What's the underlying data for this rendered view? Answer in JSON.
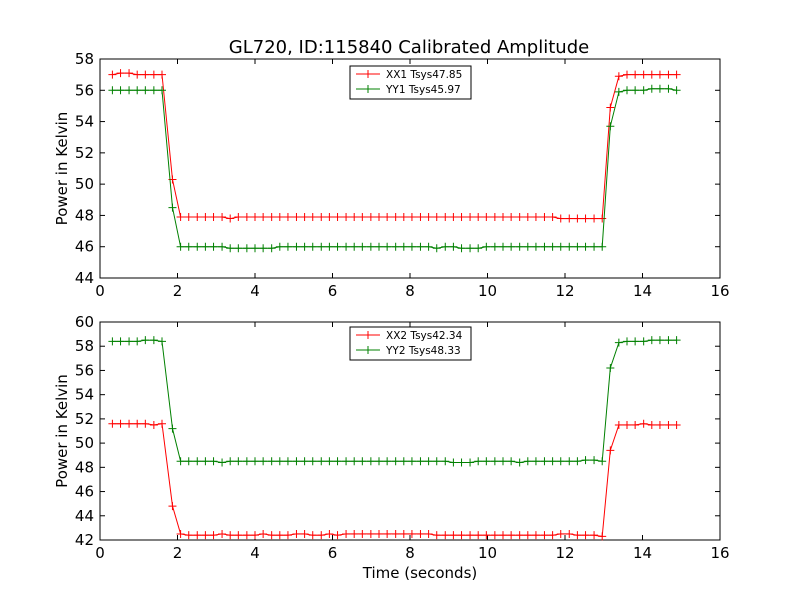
{
  "title": "GL720, ID:115840 Calibrated Amplitude",
  "chart_data": [
    {
      "type": "line",
      "xlabel": "",
      "ylabel": "Power in Kelvin",
      "xlim": [
        0,
        16
      ],
      "ylim": [
        44,
        58
      ],
      "xticks": [
        "0",
        "2",
        "4",
        "6",
        "8",
        "10",
        "12",
        "14",
        "16"
      ],
      "yticks": [
        "44",
        "46",
        "48",
        "50",
        "52",
        "54",
        "56",
        "58"
      ],
      "legend": "top-center",
      "grid": false,
      "x": [
        0.32,
        0.53,
        0.75,
        0.96,
        1.17,
        1.39,
        1.6,
        1.87,
        2.08,
        2.29,
        2.51,
        2.72,
        2.93,
        3.15,
        3.36,
        3.57,
        3.79,
        4.0,
        4.21,
        4.43,
        4.64,
        4.85,
        5.07,
        5.28,
        5.49,
        5.71,
        5.92,
        6.13,
        6.35,
        6.56,
        6.77,
        6.99,
        7.2,
        7.41,
        7.63,
        7.84,
        8.05,
        8.27,
        8.48,
        8.69,
        8.91,
        9.12,
        9.33,
        9.55,
        9.76,
        9.97,
        10.19,
        10.4,
        10.61,
        10.83,
        11.04,
        11.25,
        11.47,
        11.68,
        11.89,
        12.11,
        12.32,
        12.53,
        12.75,
        12.96,
        13.17,
        13.39,
        13.6,
        13.81,
        14.03,
        14.24,
        14.45,
        14.67,
        14.88
      ],
      "series": [
        {
          "name": "XX1 Tsys47.85",
          "color": "#ff0000",
          "values": [
            57.0,
            57.1,
            57.1,
            57.0,
            57.0,
            57.0,
            57.0,
            50.3,
            47.9,
            47.9,
            47.9,
            47.9,
            47.9,
            47.9,
            47.8,
            47.9,
            47.9,
            47.9,
            47.9,
            47.9,
            47.9,
            47.9,
            47.9,
            47.9,
            47.9,
            47.9,
            47.9,
            47.9,
            47.9,
            47.9,
            47.9,
            47.9,
            47.9,
            47.9,
            47.9,
            47.9,
            47.9,
            47.9,
            47.9,
            47.9,
            47.9,
            47.9,
            47.9,
            47.9,
            47.9,
            47.9,
            47.9,
            47.9,
            47.9,
            47.9,
            47.9,
            47.9,
            47.9,
            47.9,
            47.8,
            47.8,
            47.8,
            47.8,
            47.8,
            47.8,
            54.9,
            56.9,
            57.0,
            57.0,
            57.0,
            57.0,
            57.0,
            57.0,
            57.0
          ]
        },
        {
          "name": "YY1 Tsys45.97",
          "color": "#008000",
          "values": [
            56.0,
            56.0,
            56.0,
            56.0,
            56.0,
            56.0,
            56.0,
            48.5,
            46.0,
            46.0,
            46.0,
            46.0,
            46.0,
            46.0,
            45.9,
            45.9,
            45.9,
            45.9,
            45.9,
            45.9,
            46.0,
            46.0,
            46.0,
            46.0,
            46.0,
            46.0,
            46.0,
            46.0,
            46.0,
            46.0,
            46.0,
            46.0,
            46.0,
            46.0,
            46.0,
            46.0,
            46.0,
            46.0,
            46.0,
            45.9,
            46.0,
            46.0,
            45.9,
            45.9,
            45.9,
            46.0,
            46.0,
            46.0,
            46.0,
            46.0,
            46.0,
            46.0,
            46.0,
            46.0,
            46.0,
            46.0,
            46.0,
            46.0,
            46.0,
            46.0,
            53.7,
            55.9,
            56.0,
            56.0,
            56.0,
            56.1,
            56.1,
            56.1,
            56.0
          ]
        }
      ]
    },
    {
      "type": "line",
      "xlabel": "Time (seconds)",
      "ylabel": "Power in Kelvin",
      "xlim": [
        0,
        16
      ],
      "ylim": [
        42,
        60
      ],
      "xticks": [
        "0",
        "2",
        "4",
        "6",
        "8",
        "10",
        "12",
        "14",
        "16"
      ],
      "yticks": [
        "42",
        "44",
        "46",
        "48",
        "50",
        "52",
        "54",
        "56",
        "58",
        "60"
      ],
      "legend": "top-center",
      "grid": false,
      "x": [
        0.32,
        0.53,
        0.75,
        0.96,
        1.17,
        1.39,
        1.6,
        1.87,
        2.08,
        2.29,
        2.51,
        2.72,
        2.93,
        3.15,
        3.36,
        3.57,
        3.79,
        4.0,
        4.21,
        4.43,
        4.64,
        4.85,
        5.07,
        5.28,
        5.49,
        5.71,
        5.92,
        6.13,
        6.35,
        6.56,
        6.77,
        6.99,
        7.2,
        7.41,
        7.63,
        7.84,
        8.05,
        8.27,
        8.48,
        8.69,
        8.91,
        9.12,
        9.33,
        9.55,
        9.76,
        9.97,
        10.19,
        10.4,
        10.61,
        10.83,
        11.04,
        11.25,
        11.47,
        11.68,
        11.89,
        12.11,
        12.32,
        12.53,
        12.75,
        12.96,
        13.17,
        13.39,
        13.6,
        13.81,
        14.03,
        14.24,
        14.45,
        14.67,
        14.88
      ],
      "series": [
        {
          "name": "XX2 Tsys42.34",
          "color": "#ff0000",
          "values": [
            51.6,
            51.6,
            51.6,
            51.6,
            51.6,
            51.5,
            51.6,
            44.8,
            42.5,
            42.4,
            42.4,
            42.4,
            42.4,
            42.5,
            42.4,
            42.4,
            42.4,
            42.4,
            42.5,
            42.4,
            42.4,
            42.4,
            42.5,
            42.5,
            42.4,
            42.4,
            42.5,
            42.4,
            42.5,
            42.5,
            42.5,
            42.5,
            42.5,
            42.5,
            42.5,
            42.5,
            42.5,
            42.5,
            42.5,
            42.4,
            42.4,
            42.4,
            42.4,
            42.4,
            42.4,
            42.4,
            42.4,
            42.4,
            42.4,
            42.4,
            42.4,
            42.4,
            42.4,
            42.4,
            42.5,
            42.5,
            42.4,
            42.4,
            42.4,
            42.3,
            49.4,
            51.5,
            51.5,
            51.5,
            51.6,
            51.5,
            51.5,
            51.5,
            51.5
          ]
        },
        {
          "name": "YY2 Tsys48.33",
          "color": "#008000",
          "values": [
            58.4,
            58.4,
            58.4,
            58.4,
            58.5,
            58.5,
            58.4,
            51.2,
            48.5,
            48.5,
            48.5,
            48.5,
            48.5,
            48.4,
            48.5,
            48.5,
            48.5,
            48.5,
            48.5,
            48.5,
            48.5,
            48.5,
            48.5,
            48.5,
            48.5,
            48.5,
            48.5,
            48.5,
            48.5,
            48.5,
            48.5,
            48.5,
            48.5,
            48.5,
            48.5,
            48.5,
            48.5,
            48.5,
            48.5,
            48.5,
            48.5,
            48.4,
            48.4,
            48.4,
            48.5,
            48.5,
            48.5,
            48.5,
            48.5,
            48.4,
            48.5,
            48.5,
            48.5,
            48.5,
            48.5,
            48.5,
            48.5,
            48.6,
            48.6,
            48.5,
            56.2,
            58.3,
            58.4,
            58.4,
            58.4,
            58.5,
            58.5,
            58.5,
            58.5
          ]
        }
      ]
    }
  ]
}
